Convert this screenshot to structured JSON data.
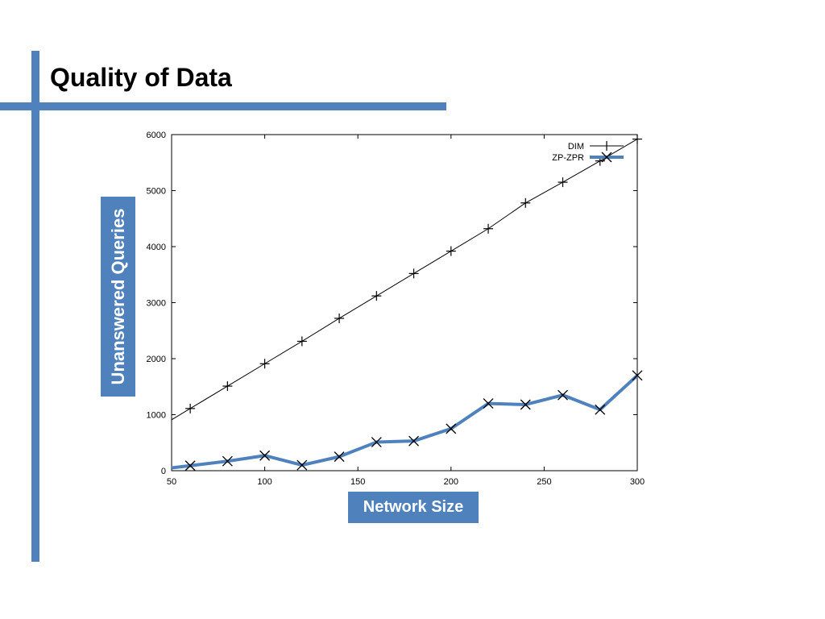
{
  "slide": {
    "title": "Quality of Data"
  },
  "colors": {
    "accent": "#4f81bd",
    "dim_series": "#000000",
    "zp_zpr_series": "#4f81bd"
  },
  "chart_data": {
    "type": "line",
    "title": "",
    "xlabel": "Network Size",
    "ylabel": "Unanswered Queries",
    "xlim": [
      50,
      300
    ],
    "ylim": [
      0,
      6000
    ],
    "xticks": [
      50,
      100,
      150,
      200,
      250,
      300
    ],
    "yticks": [
      0,
      1000,
      2000,
      3000,
      4000,
      5000,
      6000
    ],
    "grid": false,
    "legend_position": "top-right",
    "series": [
      {
        "name": "DIM",
        "marker": "plus",
        "color": "#000000",
        "x": [
          60,
          80,
          100,
          120,
          140,
          160,
          180,
          200,
          220,
          240,
          260,
          280,
          300
        ],
        "y": [
          1110,
          1510,
          1910,
          2310,
          2720,
          3120,
          3520,
          3920,
          4320,
          4780,
          5150,
          5530,
          5920
        ]
      },
      {
        "name": "ZP-ZPR",
        "marker": "cross",
        "color": "#4f81bd",
        "x": [
          50,
          60,
          80,
          100,
          120,
          140,
          160,
          180,
          200,
          220,
          240,
          260,
          280,
          300
        ],
        "y": [
          50,
          90,
          170,
          270,
          100,
          250,
          510,
          530,
          750,
          1200,
          1180,
          1350,
          1090,
          1700
        ]
      }
    ]
  }
}
